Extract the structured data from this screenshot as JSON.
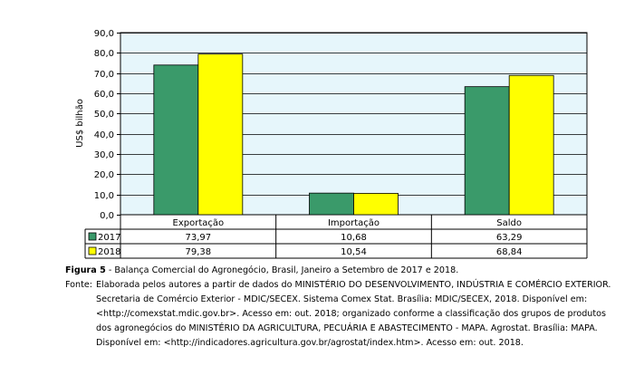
{
  "chart_data": {
    "type": "bar",
    "ylabel": "US$ bilhão",
    "ylim": [
      0,
      90
    ],
    "yticks": [
      "0,0",
      "10,0",
      "20,0",
      "30,0",
      "40,0",
      "50,0",
      "60,0",
      "70,0",
      "80,0",
      "90,0"
    ],
    "grid": true,
    "categories": [
      "Exportação",
      "Importação",
      "Saldo"
    ],
    "series": [
      {
        "name": "2017",
        "values": [
          73.97,
          10.68,
          63.29
        ],
        "labels": [
          "73,97",
          "10,68",
          "63,29"
        ],
        "color": "#3a9a6a"
      },
      {
        "name": "2018",
        "values": [
          79.38,
          10.54,
          68.84
        ],
        "labels": [
          "79,38",
          "10,54",
          "68,84"
        ],
        "color": "#ffff00"
      }
    ],
    "plot_background": "#e6f6fb",
    "data_table": true
  },
  "caption": {
    "figure_label": "Figura 5",
    "figure_text": " - Balança Comercial do Agronegócio, Brasil, Janeiro a Setembro de 2017 e 2018.",
    "source_label": "Fonte:",
    "source_lines": [
      "Elaborada pelos autores a partir de dados do MINISTÉRIO DO DESENVOLVIMENTO, INDÚSTRIA E COMÉRCIO EXTERIOR.",
      "Secretaria de Comércio Exterior - MDIC/SECEX. Sistema Comex Stat. Brasília: MDIC/SECEX, 2018. Disponível em:",
      "<http://comexstat.mdic.gov.br>. Acesso em: out. 2018; organizado conforme a classificação dos grupos de produtos",
      "dos agronegócios do MINISTÉRIO DA AGRICULTURA, PECUÁRIA E ABASTECIMENTO - MAPA. Agrostat. Brasília: MAPA.",
      "Disponível em: <http://indicadores.agricultura.gov.br/agrostat/index.htm>. Acesso em: out. 2018."
    ]
  }
}
